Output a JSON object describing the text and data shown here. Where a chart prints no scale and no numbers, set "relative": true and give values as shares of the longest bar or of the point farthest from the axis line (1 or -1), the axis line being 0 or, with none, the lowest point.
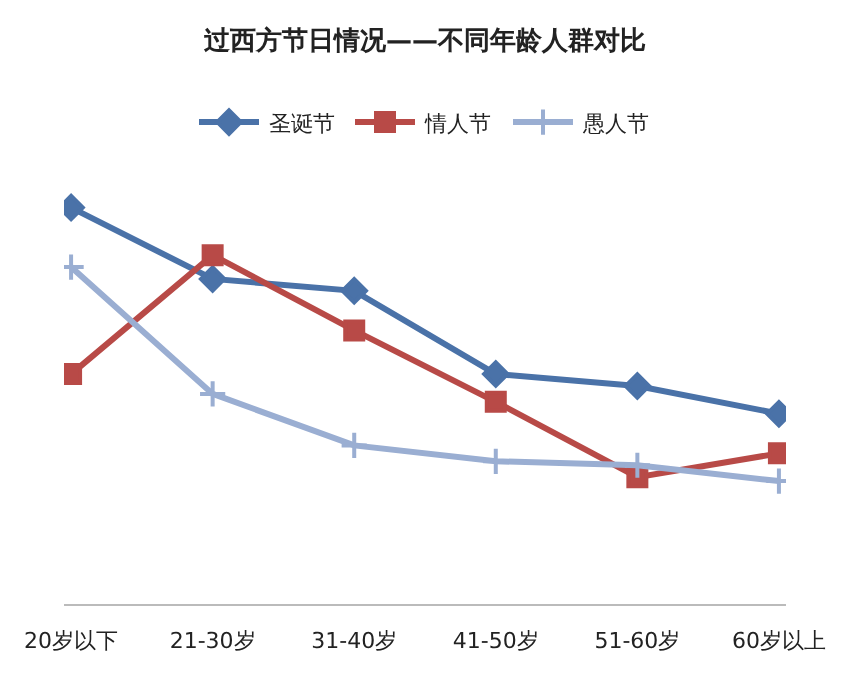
{
  "chart_data": {
    "type": "line",
    "title": "过西方节日情况——不同年龄人群对比",
    "relative": true,
    "legend": "top",
    "categories": [
      "20岁以下",
      "21-30岁",
      "31-40岁",
      "41-50岁",
      "51-60岁",
      "60岁以上"
    ],
    "series": [
      {
        "name": "圣诞节",
        "color": "#4a72a8",
        "marker": "diamond",
        "values": [
          1,
          0.82,
          0.79,
          0.58,
          0.55,
          0.48
        ]
      },
      {
        "name": "情人节",
        "color": "#b84a47",
        "marker": "square",
        "values": [
          0.58,
          0.88,
          0.69,
          0.51,
          0.32,
          0.38
        ]
      },
      {
        "name": "愚人节",
        "color": "#9aaed2",
        "marker": "cross",
        "values": [
          0.85,
          0.53,
          0.4,
          0.36,
          0.35,
          0.31
        ]
      }
    ]
  }
}
